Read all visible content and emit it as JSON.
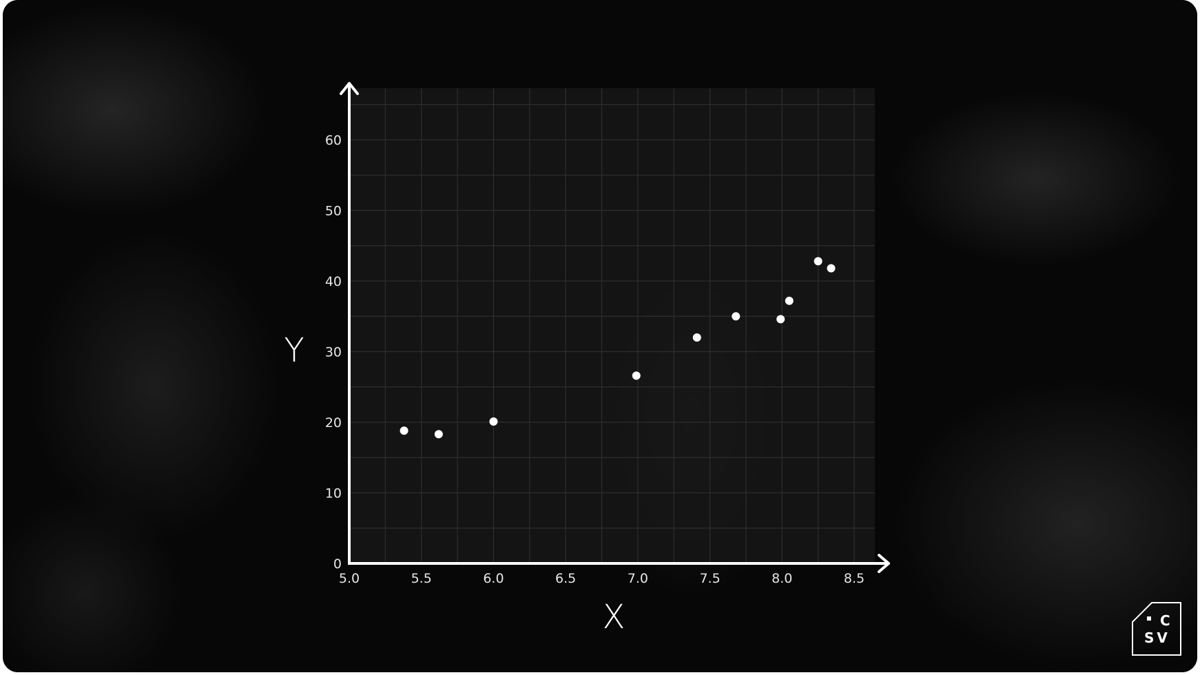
{
  "chart_data": {
    "type": "scatter",
    "xlabel": "X",
    "ylabel": "Y",
    "xlim": [
      5.0,
      8.6
    ],
    "ylim": [
      0,
      67
    ],
    "x_ticks": [
      5.0,
      5.5,
      6.0,
      6.5,
      7.0,
      7.5,
      8.0,
      8.5
    ],
    "x_tick_labels": [
      "5.0",
      "5.5",
      "6.0",
      "6.5",
      "7.0",
      "7.5",
      "8.0",
      "8.5"
    ],
    "y_ticks": [
      0,
      10,
      20,
      30,
      40,
      50,
      60
    ],
    "y_tick_labels": [
      "0",
      "10",
      "20",
      "30",
      "40",
      "50",
      "60"
    ],
    "grid": true,
    "points": [
      {
        "x": 5.38,
        "y": 18.8
      },
      {
        "x": 5.62,
        "y": 18.3
      },
      {
        "x": 6.0,
        "y": 20.1
      },
      {
        "x": 6.99,
        "y": 26.6
      },
      {
        "x": 7.41,
        "y": 32.0
      },
      {
        "x": 7.68,
        "y": 35.0
      },
      {
        "x": 7.99,
        "y": 34.6
      },
      {
        "x": 8.05,
        "y": 37.2
      },
      {
        "x": 8.25,
        "y": 42.8
      },
      {
        "x": 8.34,
        "y": 41.8
      }
    ],
    "colors": {
      "points": "#ffffff",
      "axes": "#ffffff",
      "grid": "#2e2e2e",
      "plot_bg": "#161616"
    }
  },
  "logo": {
    "line1": "C",
    "line2": "SV"
  }
}
